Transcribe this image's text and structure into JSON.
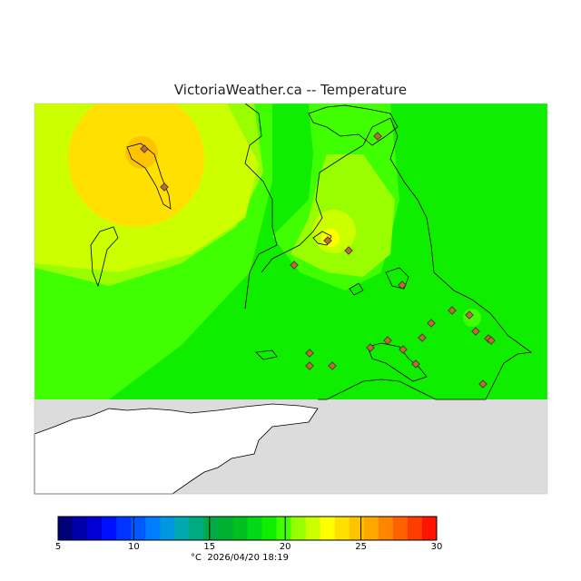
{
  "header": {
    "title": "VictoriaWeather.ca -- Temperature"
  },
  "legend": {
    "unit": "°C",
    "timestamp": "2026/04/20 18:19",
    "min": 5,
    "max": 30,
    "tick_labels": [
      "5",
      "10",
      "15",
      "20",
      "25",
      "30"
    ],
    "bin_colors": [
      "#00007a",
      "#0000a8",
      "#0000d2",
      "#0010ff",
      "#0034ff",
      "#0058ff",
      "#007cff",
      "#0096e0",
      "#00a8b0",
      "#00aa80",
      "#00aa44",
      "#00b030",
      "#00c020",
      "#00d818",
      "#10ee00",
      "#40ff00",
      "#99ff00",
      "#ccff00",
      "#ffff00",
      "#ffe000",
      "#ffc400",
      "#ffa600",
      "#ff8400",
      "#ff6000",
      "#ff3c00",
      "#ff1400"
    ]
  },
  "map": {
    "background_color": "#dcdcdc",
    "station_markers": 22
  }
}
